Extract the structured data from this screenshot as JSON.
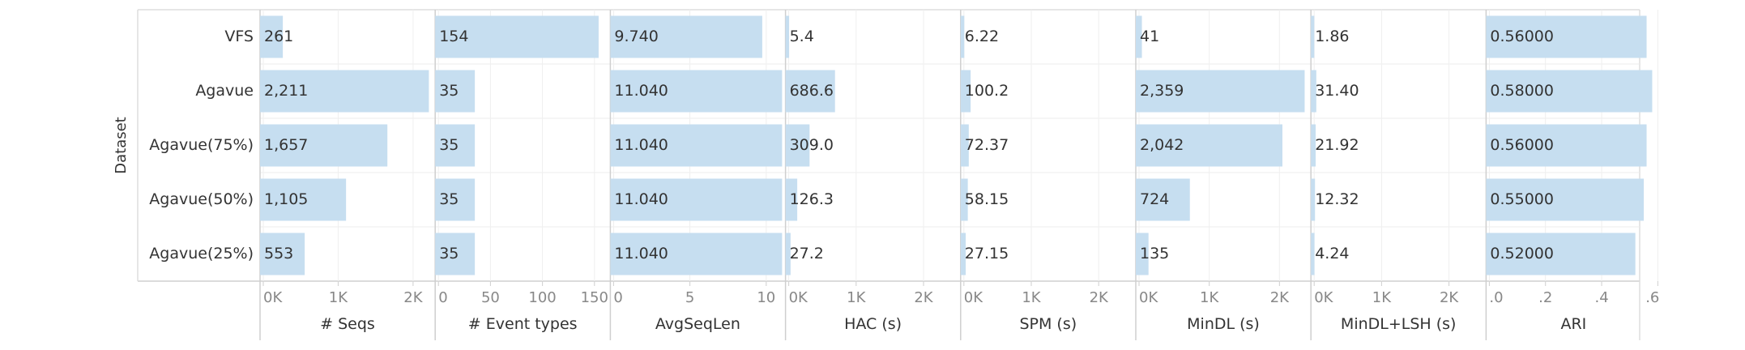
{
  "chart_data": {
    "type": "bar",
    "orientation": "horizontal",
    "dimension_label": "Dataset",
    "categories": [
      "VFS",
      "Agavue",
      "Agavue(75%)",
      "Agavue(50%)",
      "Agavue(25%)"
    ],
    "bar_color": "#c6def0",
    "grid": true,
    "panels": [
      {
        "xlabel": "# Seqs",
        "xlim": [
          0,
          2250
        ],
        "ticks": [
          0,
          1000,
          2000
        ],
        "tick_labels": [
          "0K",
          "1K",
          "2K"
        ],
        "values": [
          261,
          2211,
          1657,
          1105,
          553
        ],
        "value_labels": [
          "261",
          "2,211",
          "1,657",
          "1,105",
          "553"
        ]
      },
      {
        "xlabel": "# Event types",
        "xlim": [
          0,
          162
        ],
        "ticks": [
          0,
          50,
          100,
          150
        ],
        "tick_labels": [
          "0",
          "50",
          "100",
          "150"
        ],
        "values": [
          154,
          35,
          35,
          35,
          35
        ],
        "value_labels": [
          "154",
          "35",
          "35",
          "35",
          "35"
        ]
      },
      {
        "xlabel": "AvgSeqLen",
        "xlim": [
          0,
          11.04
        ],
        "ticks": [
          0,
          5,
          10
        ],
        "tick_labels": [
          "0",
          "5",
          "10"
        ],
        "values": [
          9.74,
          11.04,
          11.04,
          11.04,
          11.04
        ],
        "value_labels": [
          "9.740",
          "11.040",
          "11.040",
          "11.040",
          "11.040"
        ]
      },
      {
        "xlabel": "HAC (s)",
        "xlim": [
          0,
          2500
        ],
        "ticks": [
          0,
          1000,
          2000
        ],
        "tick_labels": [
          "0K",
          "1K",
          "2K"
        ],
        "values": [
          5.4,
          686.6,
          309.0,
          126.3,
          27.2
        ],
        "value_labels": [
          "5.4",
          "686.6",
          "309.0",
          "126.3",
          "27.2"
        ]
      },
      {
        "xlabel": "SPM  (s)",
        "xlim": [
          0,
          2500
        ],
        "ticks": [
          0,
          1000,
          2000
        ],
        "tick_labels": [
          "0K",
          "1K",
          "2K"
        ],
        "values": [
          6.22,
          100.2,
          72.37,
          58.15,
          27.15
        ],
        "value_labels": [
          "6.22",
          "100.2",
          "72.37",
          "58.15",
          "27.15"
        ]
      },
      {
        "xlabel": "MinDL (s)",
        "xlim": [
          0,
          2400
        ],
        "ticks": [
          0,
          1000,
          2000
        ],
        "tick_labels": [
          "0K",
          "1K",
          "2K"
        ],
        "values": [
          41,
          2359,
          2042,
          724,
          135
        ],
        "value_labels": [
          "41",
          "2,359",
          "2,042",
          "724",
          "135"
        ]
      },
      {
        "xlabel": "MinDL+LSH (s)",
        "xlim": [
          0,
          2500
        ],
        "ticks": [
          0,
          1000,
          2000
        ],
        "tick_labels": [
          "0K",
          "1K",
          "2K"
        ],
        "values": [
          1.86,
          31.4,
          21.92,
          12.32,
          4.24
        ],
        "value_labels": [
          "1.86",
          "31.40",
          "21.92",
          "12.32",
          "4.24"
        ]
      },
      {
        "xlabel": "ARI",
        "xlim": [
          0,
          0.6
        ],
        "ticks": [
          0,
          0.2,
          0.4,
          0.6
        ],
        "tick_labels": [
          ".0",
          ".2",
          ".4",
          ".6"
        ],
        "values": [
          0.56,
          0.58,
          0.56,
          0.55,
          0.52
        ],
        "value_labels": [
          "0.56000",
          "0.58000",
          "0.56000",
          "0.55000",
          "0.52000"
        ]
      }
    ]
  }
}
